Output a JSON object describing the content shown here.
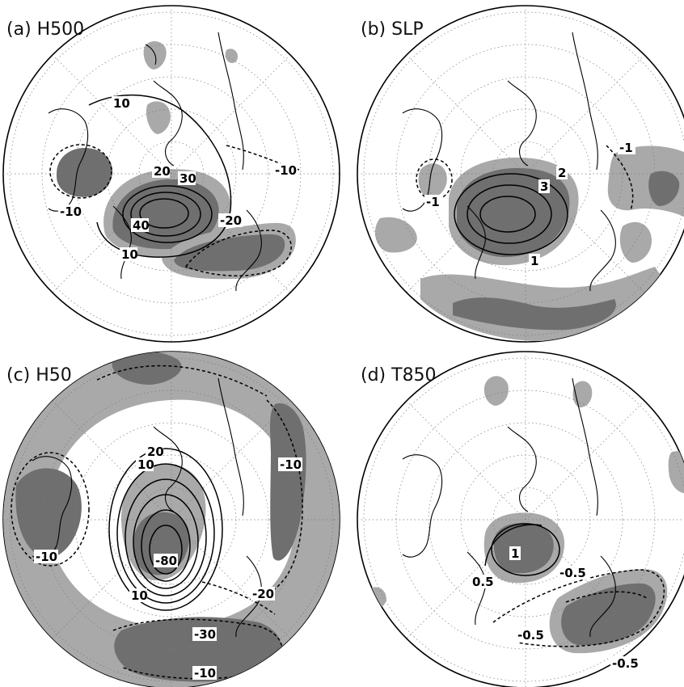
{
  "panels": [
    {
      "id": "a",
      "title": "(a) H500",
      "contour_labels": [
        "10",
        "20",
        "30",
        "40",
        "10",
        "-10",
        "-10",
        "-20"
      ]
    },
    {
      "id": "b",
      "title": "(b) SLP",
      "contour_labels": [
        "2",
        "3",
        "1",
        "-1",
        "-1"
      ]
    },
    {
      "id": "c",
      "title": "(c) H50",
      "contour_labels": [
        "20",
        "-10",
        "-10",
        "-20",
        "-30",
        "-10",
        "10",
        "-80",
        "10"
      ]
    },
    {
      "id": "d",
      "title": "(d) T850",
      "contour_labels": [
        "1",
        "0.5",
        "-0.5",
        "-0.5",
        "-0.5"
      ]
    }
  ],
  "style": {
    "shade_light": "#a9a9a9",
    "shade_dark": "#6f6f6f",
    "contour_color": "#000000"
  }
}
